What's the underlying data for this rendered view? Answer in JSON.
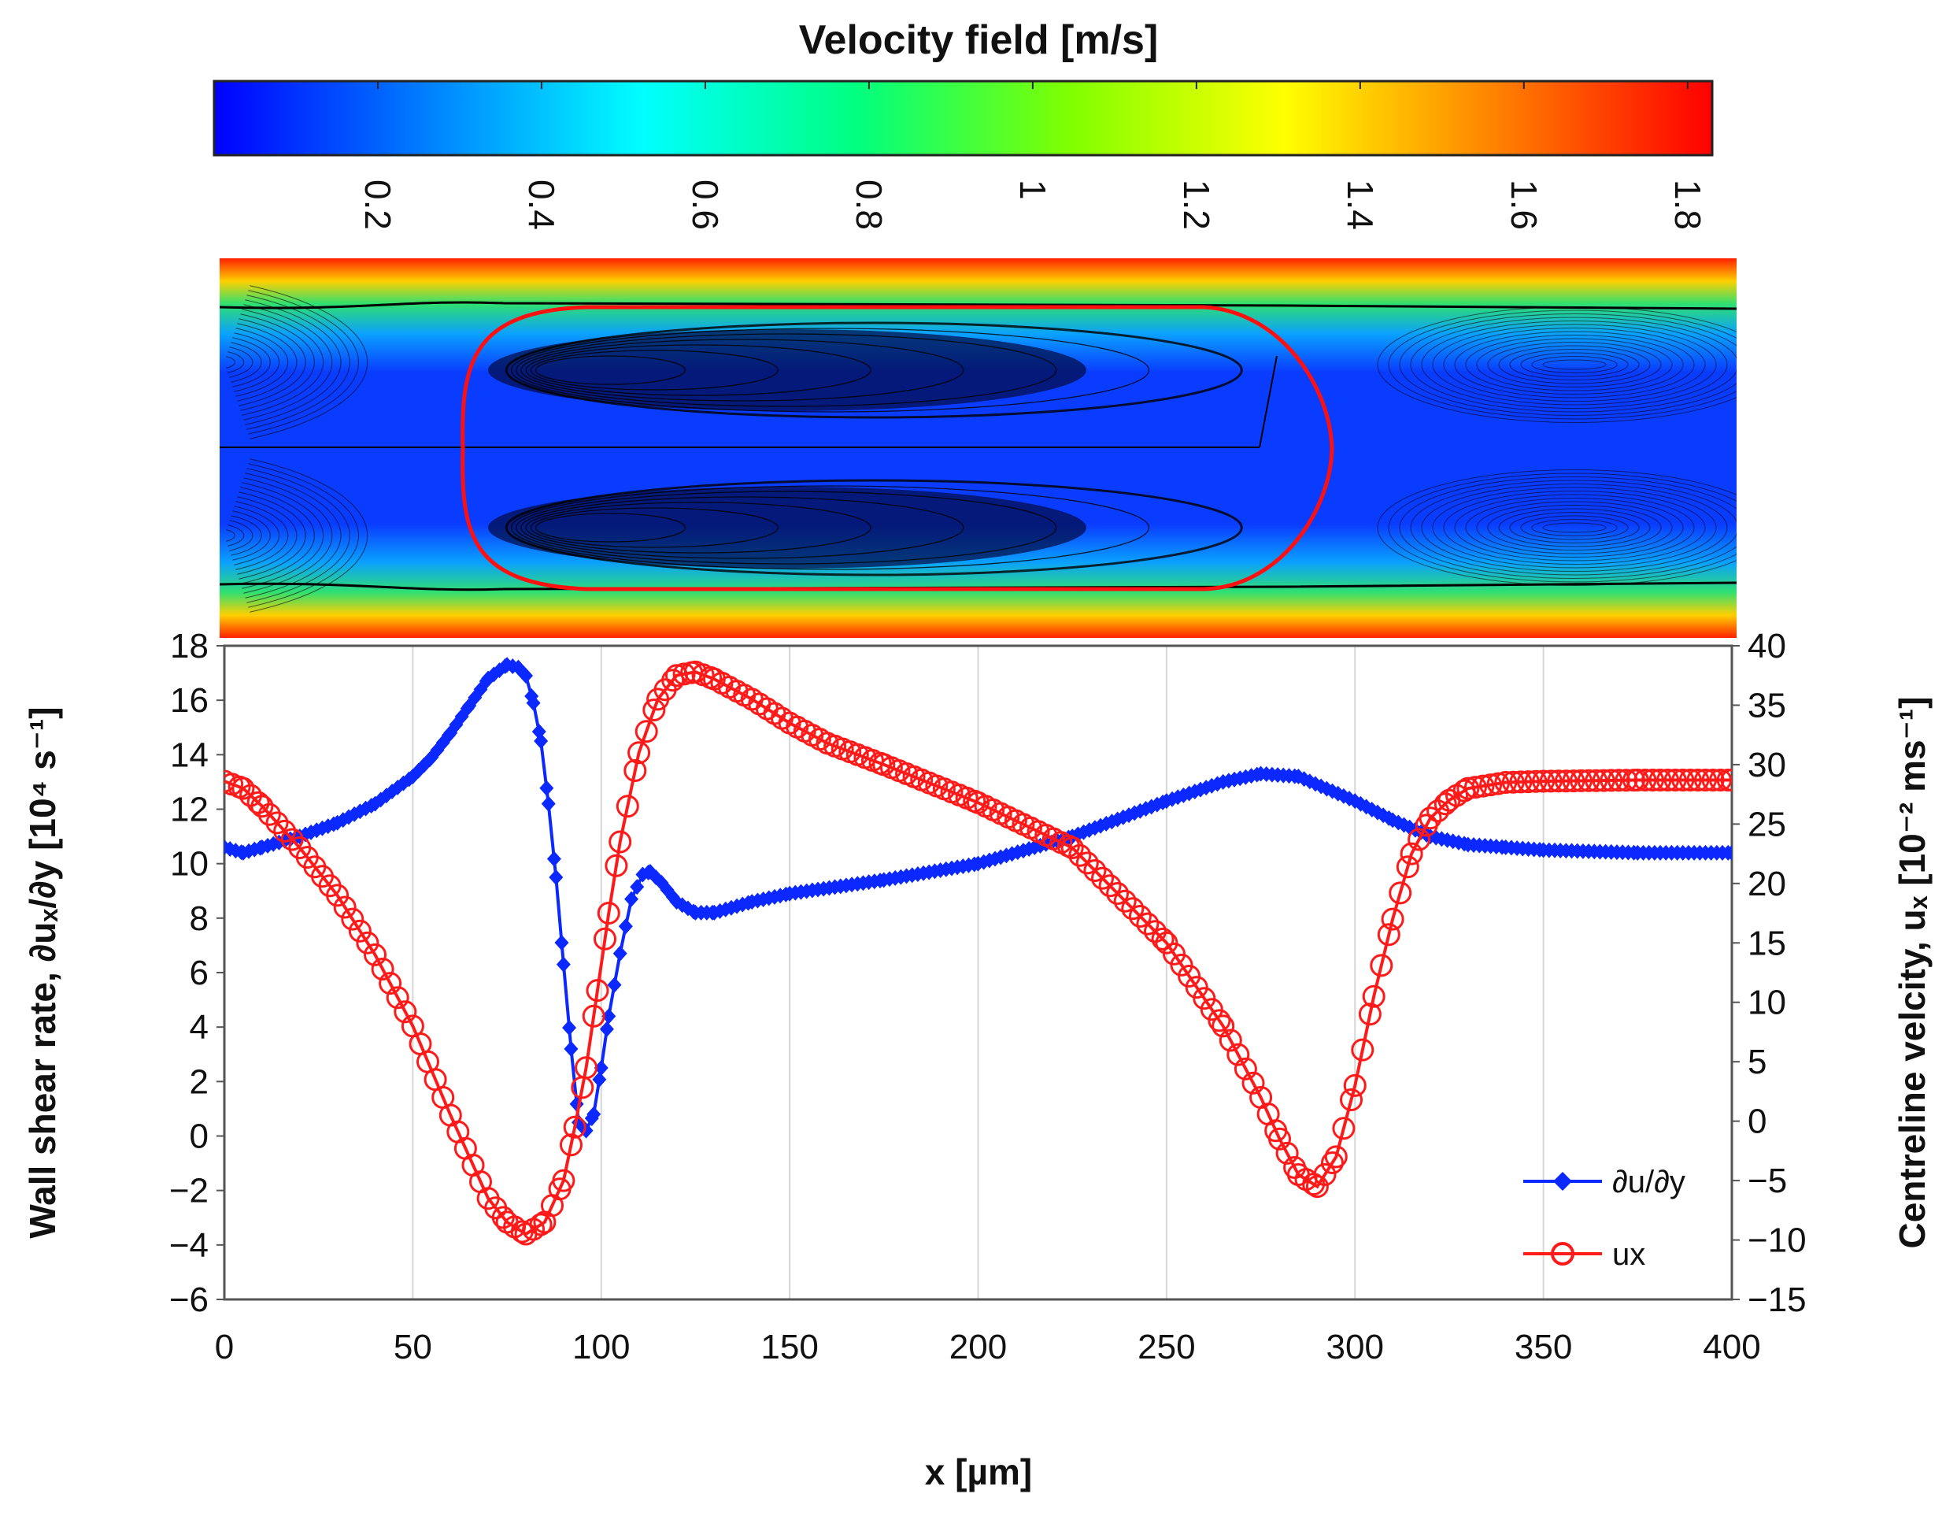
{
  "colorbar": {
    "title": "Velocity field [m/s]",
    "range": [
      0,
      1.83
    ],
    "ticks": [
      "0.2",
      "0.4",
      "0.6",
      "0.8",
      "1",
      "1.2",
      "1.4",
      "1.6",
      "1.8"
    ],
    "colormap": [
      "#0000ff",
      "#0080ff",
      "#00ffff",
      "#00ff80",
      "#80ff00",
      "#ffff00",
      "#ff8000",
      "#ff0000"
    ]
  },
  "flow_field": {
    "wall_color": "#ff2000",
    "core_color": "#0a3cff",
    "streamline_color": "#000000",
    "interface_color": "#ff1010"
  },
  "chart_data": {
    "type": "line",
    "xlabel": "x [µm]",
    "ylabel_left": "Wall shear rate, ∂uₓ/∂y [10⁴ s⁻¹]",
    "ylabel_right": "Centreline velcity, uₓ [10⁻² ms⁻¹]",
    "xlim": [
      0,
      400
    ],
    "ylim_left": [
      -6,
      18
    ],
    "ylim_right": [
      -15,
      40
    ],
    "xticks": [
      "0",
      "50",
      "100",
      "150",
      "200",
      "250",
      "300",
      "350",
      "400"
    ],
    "yticks_left": [
      "−6",
      "−4",
      "−2",
      "0",
      "2",
      "4",
      "6",
      "8",
      "10",
      "12",
      "14",
      "16",
      "18"
    ],
    "yticks_right": [
      "−15",
      "−10",
      "−5",
      "0",
      "5",
      "10",
      "15",
      "20",
      "25",
      "30",
      "35",
      "40"
    ],
    "grid": true,
    "legend_position": "bottom-right",
    "series": [
      {
        "name": "∂u/∂y",
        "axis": "left",
        "color": "#0a28ff",
        "marker": "diamond",
        "x": [
          0,
          5,
          10,
          20,
          30,
          40,
          50,
          55,
          60,
          65,
          70,
          75,
          78,
          80,
          82,
          84,
          86,
          88,
          90,
          92,
          94,
          96,
          98,
          100,
          102,
          105,
          108,
          111,
          113,
          116,
          120,
          125,
          130,
          140,
          150,
          175,
          200,
          225,
          250,
          265,
          275,
          285,
          300,
          310,
          320,
          330,
          340,
          350,
          375,
          400
        ],
        "y": [
          10.6,
          10.4,
          10.6,
          11.0,
          11.5,
          12.2,
          13.2,
          13.9,
          14.8,
          15.8,
          16.8,
          17.3,
          17.2,
          16.9,
          15.9,
          14.5,
          12.2,
          9.5,
          6.3,
          3.2,
          0.5,
          0.2,
          0.8,
          2.5,
          4.4,
          6.7,
          8.7,
          9.6,
          9.7,
          9.3,
          8.6,
          8.2,
          8.2,
          8.6,
          8.9,
          9.4,
          10.0,
          11.0,
          12.3,
          13.0,
          13.3,
          13.2,
          12.3,
          11.6,
          11.0,
          10.7,
          10.6,
          10.5,
          10.4,
          10.4
        ]
      },
      {
        "name": "ux",
        "axis": "right",
        "color": "#ff1a1a",
        "marker": "circle",
        "x": [
          0,
          5,
          10,
          20,
          30,
          40,
          50,
          60,
          70,
          75,
          80,
          85,
          90,
          93,
          96,
          99,
          102,
          105,
          110,
          115,
          120,
          125,
          130,
          140,
          150,
          160,
          175,
          200,
          225,
          250,
          265,
          275,
          280,
          285,
          290,
          295,
          300,
          305,
          310,
          315,
          320,
          325,
          330,
          340,
          350,
          375,
          400
        ],
        "y": [
          28.6,
          28.0,
          26.5,
          23.0,
          19.0,
          14.0,
          8.0,
          0.5,
          -6.5,
          -8.5,
          -9.5,
          -8.5,
          -5.0,
          -0.5,
          4.5,
          11.0,
          17.5,
          23.5,
          31.0,
          35.5,
          37.5,
          37.8,
          37.2,
          35.5,
          33.5,
          31.8,
          30.0,
          26.8,
          23.0,
          15.0,
          8.0,
          2.0,
          -1.5,
          -4.5,
          -5.5,
          -3.0,
          3.0,
          10.5,
          17.0,
          22.5,
          25.5,
          27.0,
          28.0,
          28.5,
          28.6,
          28.7,
          28.7
        ]
      }
    ]
  }
}
